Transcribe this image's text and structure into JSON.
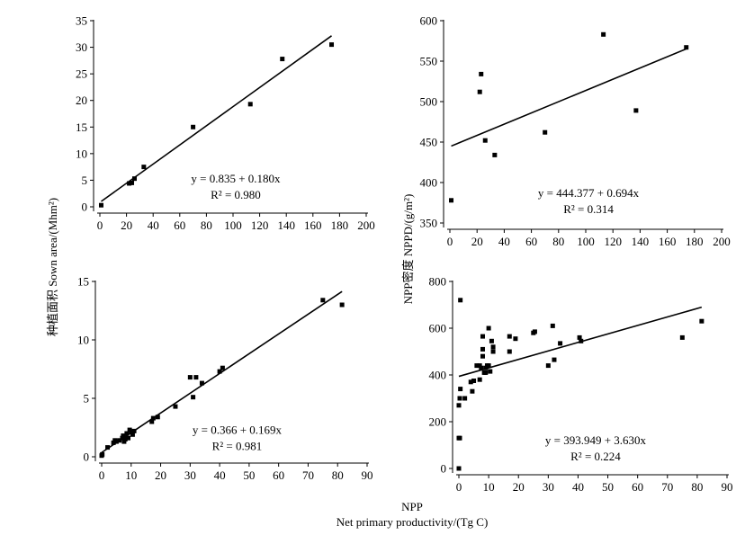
{
  "figure": {
    "ylabel_left": "种植面积 Sown area/(Mhm²)",
    "ylabel_right": "NPP密度 NPPD/(g/m²)",
    "xlabel_line1": "NPP",
    "xlabel_line2": "Net primary productivity/(Tg C)"
  },
  "chart_data": [
    {
      "type": "scatter",
      "panel": "top-left",
      "xlim": [
        0,
        200
      ],
      "ylim": [
        0,
        35
      ],
      "xticks": [
        0,
        20,
        40,
        60,
        80,
        100,
        120,
        140,
        160,
        180,
        200
      ],
      "yticks": [
        0,
        5,
        10,
        15,
        20,
        25,
        30,
        35
      ],
      "points": [
        [
          1,
          0.3
        ],
        [
          22,
          4.4
        ],
        [
          24,
          4.5
        ],
        [
          26,
          5.3
        ],
        [
          33,
          7.5
        ],
        [
          70,
          15
        ],
        [
          113,
          19.3
        ],
        [
          137,
          27.8
        ],
        [
          174,
          30.5
        ]
      ],
      "fit": {
        "intercept": 0.835,
        "slope": 0.18
      },
      "equation": "y = 0.835 + 0.180x",
      "r2": "R² = 0.980",
      "annotation_position": "lower-right"
    },
    {
      "type": "scatter",
      "panel": "top-right",
      "xlim": [
        0,
        200
      ],
      "ylim": [
        350,
        600
      ],
      "xticks": [
        0,
        20,
        40,
        60,
        80,
        100,
        120,
        140,
        160,
        180,
        200
      ],
      "yticks": [
        350,
        400,
        450,
        500,
        550,
        600
      ],
      "points": [
        [
          1,
          378
        ],
        [
          22,
          512
        ],
        [
          23,
          534
        ],
        [
          26,
          452
        ],
        [
          33,
          434
        ],
        [
          70,
          462
        ],
        [
          113,
          583
        ],
        [
          137,
          489
        ],
        [
          174,
          567
        ]
      ],
      "fit": {
        "intercept": 444.377,
        "slope": 0.694
      },
      "equation": "y = 444.377 + 0.694x",
      "r2": "R² = 0.314",
      "annotation_position": "lower-right"
    },
    {
      "type": "scatter",
      "panel": "bottom-left",
      "xlim": [
        0,
        90
      ],
      "ylim": [
        0,
        15
      ],
      "xticks": [
        0,
        10,
        20,
        30,
        40,
        50,
        60,
        70,
        80,
        90
      ],
      "yticks": [
        0,
        5,
        10,
        15
      ],
      "points": [
        [
          0,
          0.1
        ],
        [
          0.2,
          0.2
        ],
        [
          2,
          0.8
        ],
        [
          4,
          1.2
        ],
        [
          4.5,
          1.4
        ],
        [
          5,
          1.3
        ],
        [
          6,
          1.4
        ],
        [
          7,
          1.6
        ],
        [
          7.3,
          1.8
        ],
        [
          7.6,
          1.3
        ],
        [
          8,
          1.5
        ],
        [
          8.5,
          2.0
        ],
        [
          9,
          1.6
        ],
        [
          9.5,
          2.3
        ],
        [
          10,
          2.1
        ],
        [
          10.5,
          1.9
        ],
        [
          11,
          2.2
        ],
        [
          17,
          3.0
        ],
        [
          17.5,
          3.3
        ],
        [
          19,
          3.4
        ],
        [
          25,
          4.3
        ],
        [
          30,
          6.8
        ],
        [
          31,
          5.1
        ],
        [
          32,
          6.8
        ],
        [
          34,
          6.3
        ],
        [
          40,
          7.3
        ],
        [
          41,
          7.6
        ],
        [
          75,
          13.4
        ],
        [
          81.5,
          13.0
        ]
      ],
      "fit": {
        "intercept": 0.366,
        "slope": 0.169
      },
      "equation": "y = 0.366 + 0.169x",
      "r2": "R² = 0.981",
      "annotation_position": "lower-right"
    },
    {
      "type": "scatter",
      "panel": "bottom-right",
      "xlim": [
        0,
        90
      ],
      "ylim": [
        0,
        800
      ],
      "xticks": [
        0,
        10,
        20,
        30,
        40,
        50,
        60,
        70,
        80,
        90
      ],
      "yticks": [
        0,
        200,
        400,
        600,
        800
      ],
      "points": [
        [
          0,
          0
        ],
        [
          0,
          130
        ],
        [
          0,
          270
        ],
        [
          0.3,
          130
        ],
        [
          0.3,
          300
        ],
        [
          0.5,
          720
        ],
        [
          0.5,
          340
        ],
        [
          2,
          300
        ],
        [
          4,
          370
        ],
        [
          4.5,
          330
        ],
        [
          5,
          375
        ],
        [
          6,
          440
        ],
        [
          7,
          440
        ],
        [
          7,
          380
        ],
        [
          7.5,
          430
        ],
        [
          8,
          480
        ],
        [
          8,
          510
        ],
        [
          8,
          565
        ],
        [
          8.5,
          410
        ],
        [
          9,
          430
        ],
        [
          9,
          410
        ],
        [
          9.5,
          440
        ],
        [
          10,
          600
        ],
        [
          10,
          440
        ],
        [
          10.5,
          415
        ],
        [
          11,
          545
        ],
        [
          11.5,
          500
        ],
        [
          11.5,
          520
        ],
        [
          17,
          565
        ],
        [
          17,
          500
        ],
        [
          19,
          555
        ],
        [
          25,
          580
        ],
        [
          25.5,
          585
        ],
        [
          30,
          440
        ],
        [
          31.5,
          610
        ],
        [
          32,
          465
        ],
        [
          34,
          535
        ],
        [
          40.5,
          560
        ],
        [
          41,
          545
        ],
        [
          75,
          560
        ],
        [
          81.5,
          630
        ]
      ],
      "fit": {
        "intercept": 393.949,
        "slope": 3.63
      },
      "equation": "y = 393.949 + 3.630x",
      "r2": "R² = 0.224",
      "annotation_position": "lower-right"
    }
  ]
}
